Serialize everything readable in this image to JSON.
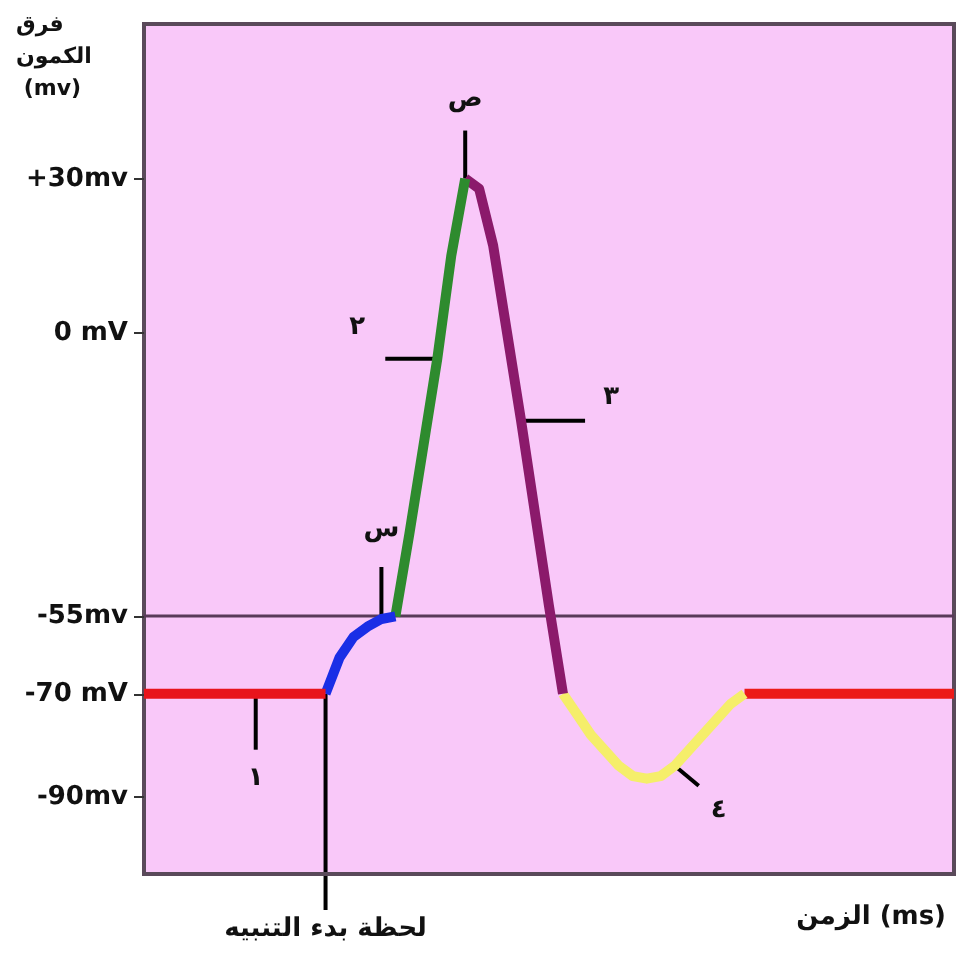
{
  "chart_data": {
    "type": "line",
    "ylabel": "فرق الكمون (mv)",
    "xlabel": "الزمن (ms)",
    "categories": [
      null,
      null,
      null,
      null,
      null,
      null,
      null,
      null,
      null,
      null,
      null,
      null,
      null,
      null,
      null,
      null,
      null,
      null,
      null,
      null,
      null,
      null,
      null,
      null,
      null,
      null,
      null,
      null,
      null,
      null,
      null,
      null,
      null,
      null,
      null,
      null,
      null,
      null,
      null,
      null,
      null,
      null,
      null,
      null,
      null,
      null,
      null,
      null,
      null,
      null,
      null,
      null,
      null,
      null,
      null,
      null,
      null,
      null,
      null
    ],
    "series": [
      {
        "color": "#e8141c",
        "values": [
          -70,
          -70,
          -70,
          -70,
          -70,
          -70,
          -70,
          -70,
          -70,
          -70,
          -70,
          -70,
          -70,
          -70,
          null,
          null,
          null,
          null,
          null,
          null,
          null,
          null,
          null,
          null,
          null,
          null,
          null,
          null,
          null,
          null,
          null,
          null,
          null,
          null,
          null,
          null,
          null,
          null,
          null,
          null,
          null,
          null,
          null,
          null,
          null,
          null,
          null,
          null,
          null,
          null,
          null,
          null,
          null,
          null,
          null,
          null,
          null,
          null,
          null
        ]
      },
      {
        "color": "#1a2ee6",
        "values": [
          null,
          null,
          null,
          null,
          null,
          null,
          null,
          null,
          null,
          null,
          null,
          null,
          null,
          -70,
          -63,
          -59,
          -57,
          -55.5,
          -55,
          null,
          null,
          null,
          null,
          null,
          null,
          null,
          null,
          null,
          null,
          null,
          null,
          null,
          null,
          null,
          null,
          null,
          null,
          null,
          null,
          null,
          null,
          null,
          null,
          null,
          null,
          null,
          null,
          null,
          null,
          null,
          null,
          null,
          null,
          null,
          null,
          null,
          null,
          null,
          null
        ]
      },
      {
        "color": "#2e8b2e",
        "values": [
          null,
          null,
          null,
          null,
          null,
          null,
          null,
          null,
          null,
          null,
          null,
          null,
          null,
          null,
          null,
          null,
          null,
          null,
          -55,
          -39,
          -22,
          -5,
          15,
          30,
          null,
          null,
          null,
          null,
          null,
          null,
          null,
          null,
          null,
          null,
          null,
          null,
          null,
          null,
          null,
          null,
          null,
          null,
          null,
          null,
          null,
          null,
          null,
          null,
          null,
          null,
          null,
          null,
          null,
          null,
          null,
          null,
          null,
          null,
          null
        ]
      },
      {
        "color": "#8b1a6b",
        "values": [
          null,
          null,
          null,
          null,
          null,
          null,
          null,
          null,
          null,
          null,
          null,
          null,
          null,
          null,
          null,
          null,
          null,
          null,
          null,
          null,
          null,
          null,
          null,
          30,
          28,
          17,
          0,
          -17,
          -35,
          -53,
          -70,
          null,
          null,
          null,
          null,
          null,
          null,
          null,
          null,
          null,
          null,
          null,
          null,
          null,
          null,
          null,
          null,
          null,
          null,
          null,
          null,
          null,
          null,
          null,
          null,
          null,
          null,
          null,
          null
        ]
      },
      {
        "color": "#f5ee6a",
        "values": [
          null,
          null,
          null,
          null,
          null,
          null,
          null,
          null,
          null,
          null,
          null,
          null,
          null,
          null,
          null,
          null,
          null,
          null,
          null,
          null,
          null,
          null,
          null,
          null,
          null,
          null,
          null,
          null,
          null,
          null,
          -70,
          -74,
          -78,
          -81,
          -84,
          -86,
          -86.5,
          -86,
          -84,
          -81,
          -78,
          -75,
          -72,
          -70,
          null,
          null,
          null,
          null,
          null,
          null,
          null,
          null,
          null,
          null,
          null,
          null,
          null,
          null,
          null
        ]
      },
      {
        "color": "#ec1a18",
        "values": [
          null,
          null,
          null,
          null,
          null,
          null,
          null,
          null,
          null,
          null,
          null,
          null,
          null,
          null,
          null,
          null,
          null,
          null,
          null,
          null,
          null,
          null,
          null,
          null,
          null,
          null,
          null,
          null,
          null,
          null,
          null,
          null,
          null,
          null,
          null,
          null,
          null,
          null,
          null,
          null,
          null,
          null,
          null,
          -70,
          -70,
          -70,
          -70,
          -70,
          -70,
          -70,
          -70,
          -70,
          -70,
          -70,
          -70,
          -70,
          -70,
          -70,
          -70
        ]
      }
    ],
    "ylim": [
      -105,
      60
    ],
    "yticks": [
      {
        "value": 30,
        "label": "+30mv"
      },
      {
        "value": 0,
        "label": "0 mV"
      },
      {
        "value": -55,
        "label": "-55mv"
      },
      {
        "value": -70,
        "label": "-70 mV"
      },
      {
        "value": -90,
        "label": "-90mv"
      }
    ],
    "tick_labels": "y",
    "grid": false,
    "line_style": "solid",
    "ref_lines": [
      {
        "axis": "y",
        "value": -55,
        "color": "#5a3a5a"
      }
    ],
    "annotations": [
      "ص",
      "س",
      "٢",
      "٣",
      "٤",
      "١",
      "لحظة بدء التنبيه"
    ]
  }
}
